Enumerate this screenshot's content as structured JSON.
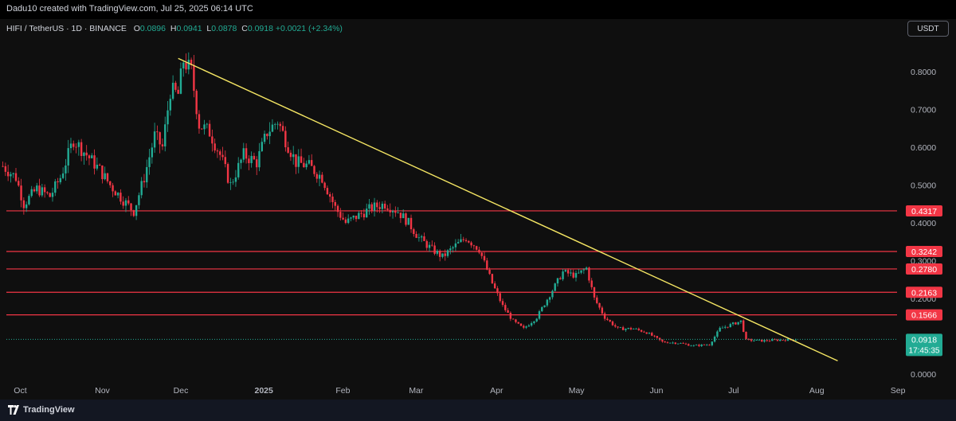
{
  "header": {
    "caption": "Dadu10 created with TradingView.com, Jul 25, 2025 06:14 UTC"
  },
  "legend": {
    "symbol": "HIFI / TetherUS · 1D · BINANCE",
    "o_label": "O",
    "o_value": "0.0896",
    "h_label": "H",
    "h_value": "0.0941",
    "l_label": "L",
    "l_value": "0.0878",
    "c_label": "C",
    "c_value": "0.0918",
    "change": "+0.0021 (+2.34%)"
  },
  "currency_button": "USDT",
  "footer": {
    "brand": "TradingView"
  },
  "colors": {
    "up": "#22ab94",
    "down": "#f23645",
    "trendline": "#f5e663",
    "level": "#f23645",
    "background": "#0f0f0f"
  },
  "chart_data": {
    "type": "candlestick",
    "symbol": "HIFI / TetherUS",
    "interval": "1D",
    "exchange": "BINANCE",
    "x_ticks": [
      "Oct",
      "Nov",
      "Dec",
      "2025",
      "Feb",
      "Mar",
      "Apr",
      "May",
      "Jun",
      "Jul",
      "Aug",
      "Sep"
    ],
    "y_ticks": [
      "0.8000",
      "0.7000",
      "0.6000",
      "0.5000",
      "0.4000",
      "0.3000",
      "0.2000",
      "0.1000",
      "0.0000"
    ],
    "ylim": [
      0,
      0.85
    ],
    "grid": false,
    "horizontal_levels": [
      0.4317,
      0.3242,
      0.278,
      0.2163,
      0.1566
    ],
    "level_labels": [
      "0.4317",
      "0.3242",
      "0.2780",
      "0.2163",
      "0.1566"
    ],
    "trendline": {
      "from": [
        "2024-12-01",
        0.835
      ],
      "to": [
        "2025-08-10",
        0.035
      ]
    },
    "last_price": 0.0918,
    "last_price_label": "0.0918",
    "countdown": "17:45:35",
    "price_path": [
      [
        "2024-09-25",
        0.55
      ],
      [
        "2024-09-30",
        0.52
      ],
      [
        "2024-10-03",
        0.45
      ],
      [
        "2024-10-08",
        0.49
      ],
      [
        "2024-10-13",
        0.47
      ],
      [
        "2024-10-17",
        0.52
      ],
      [
        "2024-10-22",
        0.62
      ],
      [
        "2024-10-27",
        0.58
      ],
      [
        "2024-11-01",
        0.54
      ],
      [
        "2024-11-05",
        0.5
      ],
      [
        "2024-11-10",
        0.46
      ],
      [
        "2024-11-14",
        0.43
      ],
      [
        "2024-11-18",
        0.52
      ],
      [
        "2024-11-22",
        0.63
      ],
      [
        "2024-11-25",
        0.6
      ],
      [
        "2024-11-28",
        0.75
      ],
      [
        "2024-12-01",
        0.74
      ],
      [
        "2024-12-03",
        0.83
      ],
      [
        "2024-12-06",
        0.8
      ],
      [
        "2024-12-09",
        0.66
      ],
      [
        "2024-12-13",
        0.64
      ],
      [
        "2024-12-17",
        0.58
      ],
      [
        "2024-12-21",
        0.5
      ],
      [
        "2024-12-26",
        0.58
      ],
      [
        "2024-12-31",
        0.56
      ],
      [
        "2025-01-04",
        0.64
      ],
      [
        "2025-01-08",
        0.67
      ],
      [
        "2025-01-11",
        0.62
      ],
      [
        "2025-01-15",
        0.56
      ],
      [
        "2025-01-20",
        0.55
      ],
      [
        "2025-01-25",
        0.52
      ],
      [
        "2025-01-30",
        0.44
      ],
      [
        "2025-02-03",
        0.4
      ],
      [
        "2025-02-08",
        0.42
      ],
      [
        "2025-02-13",
        0.44
      ],
      [
        "2025-02-18",
        0.45
      ],
      [
        "2025-02-23",
        0.43
      ],
      [
        "2025-02-27",
        0.4
      ],
      [
        "2025-03-03",
        0.36
      ],
      [
        "2025-03-08",
        0.33
      ],
      [
        "2025-03-12",
        0.31
      ],
      [
        "2025-03-17",
        0.34
      ],
      [
        "2025-03-21",
        0.36
      ],
      [
        "2025-03-26",
        0.33
      ],
      [
        "2025-03-31",
        0.24
      ],
      [
        "2025-04-04",
        0.18
      ],
      [
        "2025-04-08",
        0.14
      ],
      [
        "2025-04-12",
        0.12
      ],
      [
        "2025-04-17",
        0.15
      ],
      [
        "2025-04-22",
        0.21
      ],
      [
        "2025-04-27",
        0.27
      ],
      [
        "2025-05-02",
        0.26
      ],
      [
        "2025-05-06",
        0.28
      ],
      [
        "2025-05-09",
        0.2
      ],
      [
        "2025-05-13",
        0.15
      ],
      [
        "2025-05-18",
        0.12
      ],
      [
        "2025-05-24",
        0.12
      ],
      [
        "2025-05-29",
        0.11
      ],
      [
        "2025-06-04",
        0.085
      ],
      [
        "2025-06-10",
        0.082
      ],
      [
        "2025-06-16",
        0.075
      ],
      [
        "2025-06-22",
        0.078
      ],
      [
        "2025-06-26",
        0.12
      ],
      [
        "2025-06-30",
        0.13
      ],
      [
        "2025-07-04",
        0.14
      ],
      [
        "2025-07-06",
        0.09
      ],
      [
        "2025-07-12",
        0.088
      ],
      [
        "2025-07-18",
        0.09
      ],
      [
        "2025-07-25",
        0.0918
      ]
    ]
  }
}
